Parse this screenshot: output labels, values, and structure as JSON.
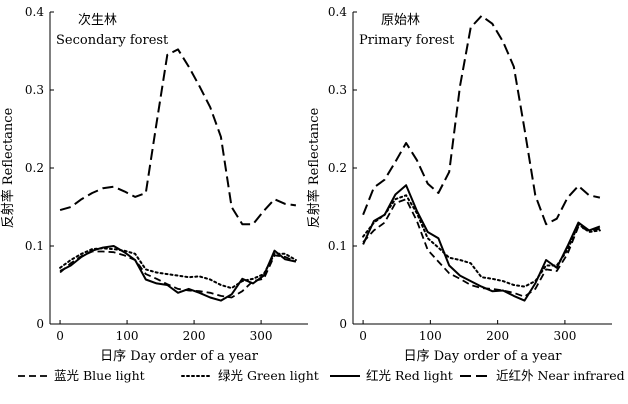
{
  "chart_data": [
    {
      "type": "line",
      "title_cn": "次生林",
      "title_en": "Secondary forest",
      "xlabel": "日序 Day order of a year",
      "ylabel": "反射率 Reflectance",
      "xlim": [
        -15,
        370
      ],
      "ylim": [
        0,
        0.4
      ],
      "xticks": [
        "0",
        "100",
        "200",
        "300"
      ],
      "yticks": [
        "0",
        "0.1",
        "0.2",
        "0.3",
        "0.4"
      ],
      "series": [
        {
          "name": "蓝光 Blue light",
          "style": "dash",
          "x": [
            0,
            16,
            32,
            48,
            64,
            80,
            96,
            112,
            128,
            144,
            160,
            176,
            192,
            208,
            224,
            240,
            256,
            272,
            288,
            304,
            320,
            336,
            352
          ],
          "y": [
            0.066,
            0.078,
            0.087,
            0.093,
            0.093,
            0.092,
            0.088,
            0.082,
            0.064,
            0.058,
            0.051,
            0.045,
            0.043,
            0.042,
            0.04,
            0.036,
            0.034,
            0.042,
            0.055,
            0.058,
            0.088,
            0.086,
            0.08
          ]
        },
        {
          "name": "绿光 Green light",
          "style": "dot",
          "x": [
            0,
            16,
            32,
            48,
            64,
            80,
            96,
            112,
            128,
            144,
            160,
            176,
            192,
            208,
            224,
            240,
            256,
            272,
            288,
            304,
            320,
            336,
            352
          ],
          "y": [
            0.072,
            0.082,
            0.09,
            0.096,
            0.097,
            0.096,
            0.094,
            0.09,
            0.07,
            0.066,
            0.064,
            0.062,
            0.06,
            0.061,
            0.057,
            0.05,
            0.046,
            0.055,
            0.058,
            0.064,
            0.09,
            0.09,
            0.082
          ]
        },
        {
          "name": "红光 Red light",
          "style": "solid",
          "x": [
            0,
            16,
            32,
            48,
            64,
            80,
            96,
            112,
            128,
            144,
            160,
            176,
            192,
            208,
            224,
            240,
            256,
            272,
            288,
            304,
            320,
            336,
            352
          ],
          "y": [
            0.068,
            0.075,
            0.086,
            0.094,
            0.098,
            0.1,
            0.092,
            0.082,
            0.057,
            0.052,
            0.05,
            0.04,
            0.045,
            0.04,
            0.034,
            0.03,
            0.038,
            0.058,
            0.052,
            0.062,
            0.094,
            0.083,
            0.08
          ]
        },
        {
          "name": "近红外 Near infrared",
          "style": "longdash",
          "x": [
            0,
            16,
            32,
            48,
            64,
            80,
            96,
            112,
            128,
            144,
            160,
            176,
            192,
            208,
            224,
            240,
            256,
            272,
            288,
            304,
            320,
            336,
            352
          ],
          "y": [
            0.146,
            0.15,
            0.16,
            0.168,
            0.174,
            0.176,
            0.17,
            0.163,
            0.168,
            0.258,
            0.345,
            0.352,
            0.33,
            0.305,
            0.278,
            0.24,
            0.15,
            0.128,
            0.128,
            0.145,
            0.16,
            0.154,
            0.152
          ]
        }
      ]
    },
    {
      "type": "line",
      "title_cn": "原始林",
      "title_en": "Primary forest",
      "xlabel": "日序 Day order of a year",
      "ylabel": "反射率 Reflectance",
      "xlim": [
        -15,
        370
      ],
      "ylim": [
        0,
        0.4
      ],
      "xticks": [
        "0",
        "100",
        "200",
        "300"
      ],
      "yticks": [
        "0",
        "0.1",
        "0.2",
        "0.3",
        "0.4"
      ],
      "series": [
        {
          "name": "蓝光 Blue light",
          "style": "dash",
          "x": [
            0,
            16,
            32,
            48,
            64,
            80,
            96,
            112,
            128,
            144,
            160,
            176,
            192,
            208,
            224,
            240,
            256,
            272,
            288,
            304,
            320,
            336,
            352
          ],
          "y": [
            0.105,
            0.12,
            0.13,
            0.155,
            0.16,
            0.132,
            0.095,
            0.08,
            0.065,
            0.058,
            0.05,
            0.046,
            0.045,
            0.043,
            0.04,
            0.035,
            0.045,
            0.07,
            0.068,
            0.09,
            0.125,
            0.12,
            0.122
          ]
        },
        {
          "name": "绿光 Green light",
          "style": "dot",
          "x": [
            0,
            16,
            32,
            48,
            64,
            80,
            96,
            112,
            128,
            144,
            160,
            176,
            192,
            208,
            224,
            240,
            256,
            272,
            288,
            304,
            320,
            336,
            352
          ],
          "y": [
            0.112,
            0.13,
            0.14,
            0.16,
            0.165,
            0.142,
            0.11,
            0.098,
            0.085,
            0.082,
            0.078,
            0.06,
            0.058,
            0.055,
            0.05,
            0.048,
            0.055,
            0.075,
            0.075,
            0.095,
            0.128,
            0.118,
            0.12
          ]
        },
        {
          "name": "红光 Red light",
          "style": "solid",
          "x": [
            0,
            16,
            32,
            48,
            64,
            80,
            96,
            112,
            128,
            144,
            160,
            176,
            192,
            208,
            224,
            240,
            256,
            272,
            288,
            304,
            320,
            336,
            352
          ],
          "y": [
            0.102,
            0.132,
            0.14,
            0.166,
            0.178,
            0.145,
            0.118,
            0.11,
            0.075,
            0.062,
            0.055,
            0.048,
            0.042,
            0.043,
            0.036,
            0.03,
            0.052,
            0.082,
            0.072,
            0.1,
            0.13,
            0.12,
            0.125
          ]
        },
        {
          "name": "近红外 Near infrared",
          "style": "longdash",
          "x": [
            0,
            16,
            32,
            48,
            64,
            80,
            96,
            112,
            128,
            144,
            160,
            176,
            192,
            208,
            224,
            240,
            256,
            272,
            288,
            304,
            320,
            336,
            352
          ],
          "y": [
            0.14,
            0.175,
            0.185,
            0.208,
            0.232,
            0.21,
            0.18,
            0.168,
            0.195,
            0.305,
            0.38,
            0.395,
            0.385,
            0.362,
            0.33,
            0.25,
            0.165,
            0.128,
            0.135,
            0.162,
            0.177,
            0.165,
            0.162
          ]
        }
      ]
    }
  ],
  "legend": [
    {
      "label": "蓝光 Blue light",
      "style": "dash"
    },
    {
      "label": "绿光 Green light",
      "style": "dot"
    },
    {
      "label": "红光 Red light",
      "style": "solid"
    },
    {
      "label": "近红外 Near infrared",
      "style": "longdash"
    }
  ],
  "colors": {
    "line": "#000000",
    "background": "#ffffff"
  }
}
